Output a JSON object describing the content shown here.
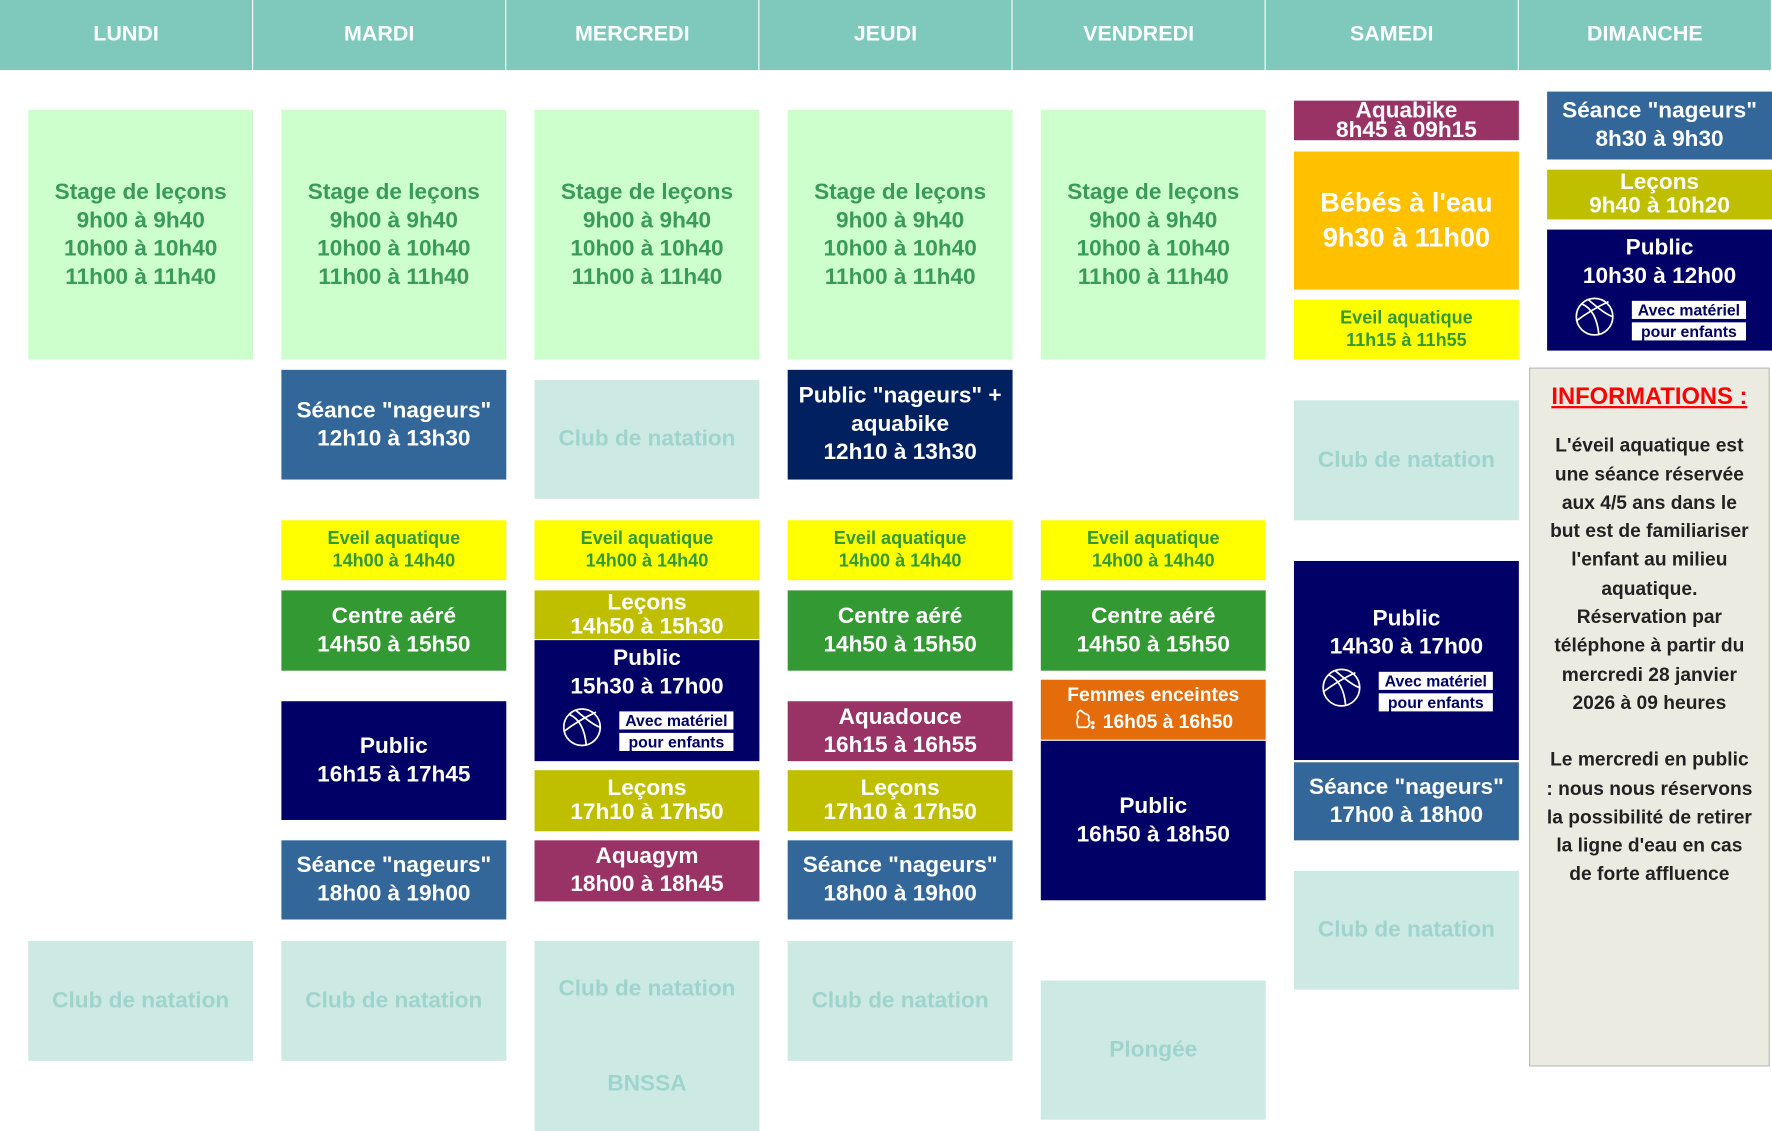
{
  "days": [
    "LUNDI",
    "MARDI",
    "MERCREDI",
    "JEUDI",
    "VENDREDI",
    "SAMEDI",
    "DIMANCHE"
  ],
  "colors": {
    "header": "#7fc8bc",
    "stage": "#ccffcc",
    "club": "#cce9e4",
    "nageurs": "#336699",
    "public": "#000066",
    "eveil": "#ffff00",
    "centre": "#339933",
    "lecons": "#bfbf00",
    "aquagym": "#993366",
    "bebes": "#ffc000",
    "femmes": "#e46c0a",
    "info_title": "#ff0000"
  },
  "ball_tags": [
    "Avec matériel",
    "pour enfants"
  ],
  "blocks": [
    {
      "day": "LUNDI",
      "type": "stage",
      "lines": [
        "Stage de leçons",
        "9h00 à 9h40",
        "10h00 à 10h40",
        "11h00 à 11h40"
      ]
    },
    {
      "day": "LUNDI",
      "type": "club",
      "lines": [
        "Club de natation"
      ]
    },
    {
      "day": "MARDI",
      "type": "stage",
      "lines": [
        "Stage de leçons",
        "9h00 à 9h40",
        "10h00 à 10h40",
        "11h00 à 11h40"
      ]
    },
    {
      "day": "MARDI",
      "type": "nageurs",
      "lines": [
        "Séance \"nageurs\"",
        "12h10 à 13h30"
      ]
    },
    {
      "day": "MARDI",
      "type": "eveil",
      "lines": [
        "Eveil aquatique",
        "14h00 à 14h40"
      ]
    },
    {
      "day": "MARDI",
      "type": "centre",
      "lines": [
        "Centre aéré",
        "14h50 à 15h50"
      ]
    },
    {
      "day": "MARDI",
      "type": "public",
      "lines": [
        "Public",
        "16h15 à 17h45"
      ]
    },
    {
      "day": "MARDI",
      "type": "nageurs",
      "lines": [
        "Séance \"nageurs\"",
        "18h00 à 19h00"
      ]
    },
    {
      "day": "MARDI",
      "type": "club",
      "lines": [
        "Club de natation"
      ]
    },
    {
      "day": "MERCREDI",
      "type": "stage",
      "lines": [
        "Stage de leçons",
        "9h00 à 9h40",
        "10h00 à 10h40",
        "11h00 à 11h40"
      ]
    },
    {
      "day": "MERCREDI",
      "type": "club",
      "lines": [
        "Club de natation"
      ]
    },
    {
      "day": "MERCREDI",
      "type": "eveil",
      "lines": [
        "Eveil aquatique",
        "14h00 à 14h40"
      ]
    },
    {
      "day": "MERCREDI",
      "type": "lecons",
      "lines": [
        "Leçons",
        "14h50 à 15h30"
      ]
    },
    {
      "day": "MERCREDI",
      "type": "public",
      "lines": [
        "Public",
        "15h30 à 17h00"
      ],
      "ball": true
    },
    {
      "day": "MERCREDI",
      "type": "lecons",
      "lines": [
        "Leçons",
        "17h10 à 17h50"
      ]
    },
    {
      "day": "MERCREDI",
      "type": "aquagym",
      "lines": [
        "Aquagym",
        "18h00 à 18h45"
      ]
    },
    {
      "day": "MERCREDI",
      "type": "club",
      "lines": [
        "Club de natation",
        "BNSSA"
      ]
    },
    {
      "day": "JEUDI",
      "type": "stage",
      "lines": [
        "Stage de leçons",
        "9h00 à 9h40",
        "10h00 à 10h40",
        "11h00 à 11h40"
      ]
    },
    {
      "day": "JEUDI",
      "type": "publicaqua",
      "lines": [
        "Public \"nageurs\" +",
        "aquabike",
        "12h10 à 13h30"
      ]
    },
    {
      "day": "JEUDI",
      "type": "eveil",
      "lines": [
        "Eveil aquatique",
        "14h00 à 14h40"
      ]
    },
    {
      "day": "JEUDI",
      "type": "centre",
      "lines": [
        "Centre aéré",
        "14h50 à 15h50"
      ]
    },
    {
      "day": "JEUDI",
      "type": "aquagym",
      "lines": [
        "Aquadouce",
        "16h15 à 16h55"
      ]
    },
    {
      "day": "JEUDI",
      "type": "lecons",
      "lines": [
        "Leçons",
        "17h10 à 17h50"
      ]
    },
    {
      "day": "JEUDI",
      "type": "nageurs",
      "lines": [
        "Séance \"nageurs\"",
        "18h00 à 19h00"
      ]
    },
    {
      "day": "JEUDI",
      "type": "club",
      "lines": [
        "Club de natation"
      ]
    },
    {
      "day": "VENDREDI",
      "type": "stage",
      "lines": [
        "Stage de leçons",
        "9h00 à 9h40",
        "10h00 à 10h40",
        "11h00 à 11h40"
      ]
    },
    {
      "day": "VENDREDI",
      "type": "eveil",
      "lines": [
        "Eveil aquatique",
        "14h00 à 14h40"
      ]
    },
    {
      "day": "VENDREDI",
      "type": "centre",
      "lines": [
        "Centre aéré",
        "14h50 à 15h50"
      ]
    },
    {
      "day": "VENDREDI",
      "type": "femmes",
      "lines": [
        "Femmes enceintes",
        "16h05 à 16h50"
      ],
      "icon": "pregnant-icon"
    },
    {
      "day": "VENDREDI",
      "type": "public",
      "lines": [
        "Public",
        "16h50 à 18h50"
      ]
    },
    {
      "day": "VENDREDI",
      "type": "club",
      "lines": [
        "Plongée"
      ]
    },
    {
      "day": "SAMEDI",
      "type": "aquabike",
      "lines": [
        "Aquabike",
        "8h45 à 09h15"
      ]
    },
    {
      "day": "SAMEDI",
      "type": "bebes",
      "lines": [
        "Bébés à l'eau",
        "9h30 à 11h00"
      ]
    },
    {
      "day": "SAMEDI",
      "type": "eveil",
      "lines": [
        "Eveil aquatique",
        "11h15 à 11h55"
      ]
    },
    {
      "day": "SAMEDI",
      "type": "club",
      "lines": [
        "Club de natation"
      ]
    },
    {
      "day": "SAMEDI",
      "type": "public",
      "lines": [
        "Public",
        "14h30 à 17h00"
      ],
      "ball": true
    },
    {
      "day": "SAMEDI",
      "type": "nageurs",
      "lines": [
        "Séance \"nageurs\"",
        "17h00 à 18h00"
      ]
    },
    {
      "day": "SAMEDI",
      "type": "club",
      "lines": [
        "Club de natation"
      ]
    },
    {
      "day": "DIMANCHE",
      "type": "nageurs",
      "lines": [
        "Séance \"nageurs\"",
        "8h30 à 9h30"
      ]
    },
    {
      "day": "DIMANCHE",
      "type": "lecons",
      "lines": [
        "Leçons",
        "9h40 à 10h20"
      ]
    },
    {
      "day": "DIMANCHE",
      "type": "public",
      "lines": [
        "Public",
        "10h30 à 12h00"
      ],
      "ball": true
    }
  ],
  "info": {
    "title": "INFORMATIONS :",
    "lines": [
      "L'éveil aquatique  est",
      "une séance réservée",
      "aux 4/5 ans dans le",
      "but  est de familiariser",
      "l'enfant au milieu",
      "aquatique.",
      "Réservation par",
      "téléphone à partir du",
      "mercredi 28 janvier",
      "2026 à 09 heures",
      "",
      "Le mercredi en public",
      ": nous nous réservons",
      "la possibilité de retirer",
      "la ligne d'eau en cas",
      "de forte affluence"
    ]
  }
}
